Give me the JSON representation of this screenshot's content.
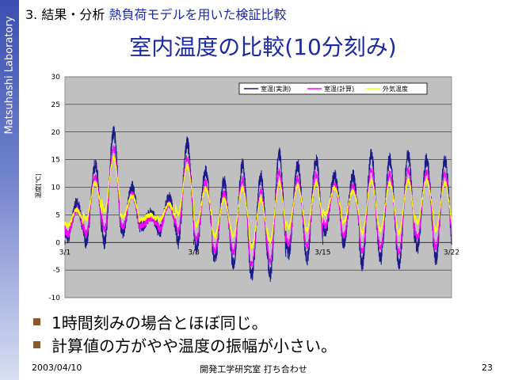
{
  "sidebar": {
    "text": "Matsuhashi Laboratory"
  },
  "header": {
    "section_number": "3.",
    "section_label": "結果・分析",
    "subtitle": "熱負荷モデルを用いた検証比較"
  },
  "title": "室内温度の比較(10分刻み)",
  "bullets": [
    "1時間刻みの場合とほぼ同じ。",
    "計算値の方がやや温度の振幅が小さい。"
  ],
  "footer": {
    "date": "2003/04/10",
    "center": "開発工学研究室 打ち合わせ",
    "page": "23"
  },
  "colors": {
    "title": "#1b2aa6",
    "bullet": "#8b5a2b",
    "sidebar": "#3a4fb0",
    "plot_bg": "#c0c0c0"
  },
  "chart_data": {
    "type": "line",
    "ylabel": "温度[℃]",
    "xlabel": "",
    "ylim": [
      -10,
      30
    ],
    "y_ticks": [
      30,
      25,
      20,
      15,
      10,
      5,
      0,
      -5,
      -10
    ],
    "x_range_days": [
      0,
      21
    ],
    "x_ticks": [
      {
        "label": "3/1",
        "day": 0
      },
      {
        "label": "3/8",
        "day": 7
      },
      {
        "label": "3/15",
        "day": 14
      },
      {
        "label": "3/22",
        "day": 21
      }
    ],
    "grid": true,
    "legend_position": "top-right",
    "series": [
      {
        "name": "室温(実測)",
        "color": "#1a1a8c",
        "amp": 8.8,
        "noise": 1.3,
        "offset": 0.0
      },
      {
        "name": "室温(計算)",
        "color": "#ff00ff",
        "amp": 6.5,
        "noise": 0.7,
        "offset": -0.3
      },
      {
        "name": "外気温度",
        "color": "#ffff00",
        "amp": 4.2,
        "noise": 0.5,
        "offset": 0.5
      }
    ],
    "daily": [
      {
        "mean": 4,
        "peak_measured": 7
      },
      {
        "mean": 7,
        "peak_measured": 14
      },
      {
        "mean": 10,
        "peak_measured": 20
      },
      {
        "mean": 6,
        "peak_measured": 10
      },
      {
        "mean": 4,
        "peak_measured": 5
      },
      {
        "mean": 5,
        "peak_measured": 8
      },
      {
        "mean": 9,
        "peak_measured": 18
      },
      {
        "mean": 6,
        "peak_measured": 13
      },
      {
        "mean": 4,
        "peak_measured": 11
      },
      {
        "mean": 5,
        "peak_measured": 14
      },
      {
        "mean": 3,
        "peak_measured": 12
      },
      {
        "mean": 5,
        "peak_measured": 16
      },
      {
        "mean": 6,
        "peak_measured": 14
      },
      {
        "mean": 6,
        "peak_measured": 15
      },
      {
        "mean": 7,
        "peak_measured": 12
      },
      {
        "mean": 6,
        "peak_measured": 12
      },
      {
        "mean": 6,
        "peak_measured": 16
      },
      {
        "mean": 6,
        "peak_measured": 15
      },
      {
        "mean": 6,
        "peak_measured": 16
      },
      {
        "mean": 7,
        "peak_measured": 15
      },
      {
        "mean": 6,
        "peak_measured": 15
      }
    ]
  }
}
